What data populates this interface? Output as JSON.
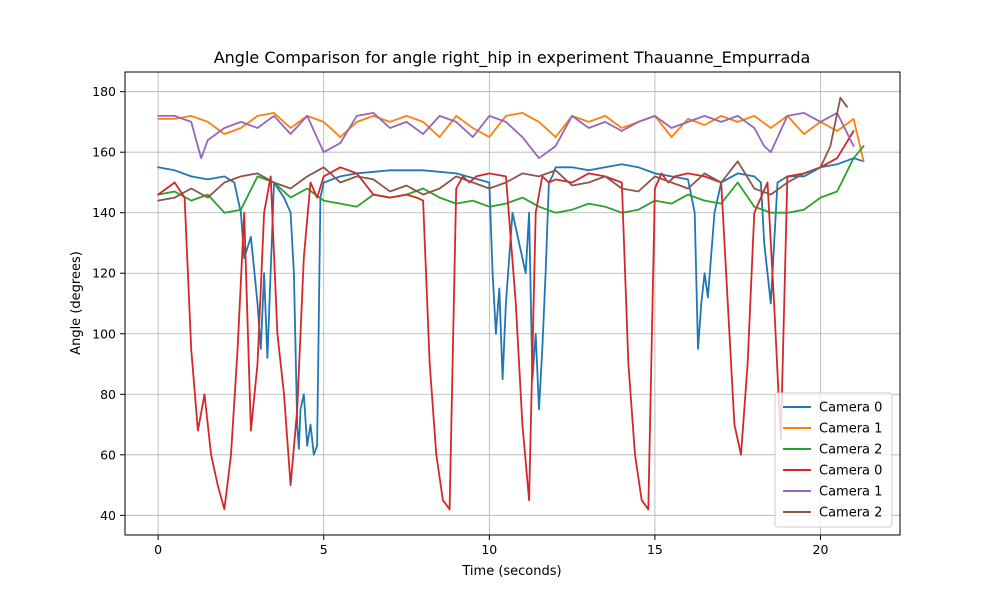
{
  "chart_data": {
    "type": "line",
    "title": "Angle Comparison for angle right_hip in experiment Thauanne_Empurrada",
    "xlabel": "Time (seconds)",
    "ylabel": "Angle (degrees)",
    "xlim": [
      -1.0,
      22.4
    ],
    "ylim": [
      33.5,
      186.5
    ],
    "xticks": [
      0,
      5,
      10,
      15,
      20
    ],
    "yticks": [
      40,
      60,
      80,
      100,
      120,
      140,
      160,
      180
    ],
    "grid": true,
    "legend_position": "lower-right",
    "series": [
      {
        "name": "Camera 0",
        "color": "#1f77b4",
        "x": [
          0,
          0.5,
          1,
          1.5,
          2,
          2.3,
          2.5,
          2.6,
          2.8,
          3,
          3.1,
          3.2,
          3.3,
          3.5,
          3.8,
          4,
          4.1,
          4.2,
          4.25,
          4.3,
          4.4,
          4.5,
          4.6,
          4.7,
          4.8,
          4.9,
          5,
          5.5,
          6,
          7,
          8,
          9,
          10,
          10.1,
          10.2,
          10.3,
          10.4,
          10.5,
          10.7,
          10.9,
          11,
          11.1,
          11.2,
          11.3,
          11.4,
          11.5,
          11.6,
          11.7,
          11.8,
          11.9,
          12,
          12.5,
          13,
          14,
          14.5,
          15,
          15.5,
          16,
          16.2,
          16.3,
          16.4,
          16.5,
          16.6,
          16.8,
          17,
          17.5,
          18,
          18.2,
          18.3,
          18.4,
          18.5,
          18.7,
          19,
          19.5,
          20,
          20.5,
          21,
          21.3
        ],
        "values": [
          155,
          154,
          152,
          151,
          152,
          150,
          140,
          125,
          132,
          110,
          95,
          120,
          92,
          150,
          145,
          140,
          120,
          70,
          62,
          75,
          80,
          63,
          70,
          60,
          63,
          145,
          150,
          152,
          153,
          154,
          154,
          153,
          150,
          120,
          100,
          115,
          85,
          110,
          140,
          130,
          125,
          120,
          140,
          85,
          100,
          75,
          95,
          120,
          150,
          152,
          155,
          155,
          154,
          156,
          155,
          153,
          152,
          151,
          140,
          95,
          110,
          120,
          112,
          140,
          150,
          153,
          152,
          150,
          130,
          120,
          110,
          150,
          152,
          152,
          155,
          156,
          158,
          157
        ]
      },
      {
        "name": "Camera 1",
        "color": "#ff7f0e",
        "x": [
          0,
          0.5,
          1,
          1.5,
          2,
          2.5,
          3,
          3.5,
          4,
          4.5,
          5,
          5.5,
          6,
          6.5,
          7,
          7.5,
          8,
          8.5,
          9,
          9.5,
          10,
          10.5,
          11,
          11.5,
          12,
          12.5,
          13,
          13.5,
          14,
          14.5,
          15,
          15.5,
          16,
          16.5,
          17,
          17.5,
          18,
          18.5,
          19,
          19.5,
          20,
          20.5,
          21,
          21.3
        ],
        "values": [
          171,
          171,
          172,
          170,
          166,
          168,
          172,
          173,
          168,
          172,
          170,
          165,
          170,
          172,
          170,
          172,
          170,
          165,
          172,
          168,
          165,
          172,
          173,
          170,
          165,
          172,
          170,
          172,
          168,
          170,
          172,
          165,
          171,
          169,
          172,
          170,
          172,
          168,
          172,
          166,
          170,
          167,
          171,
          157
        ]
      },
      {
        "name": "Camera 2",
        "color": "#2ca02c",
        "x": [
          0,
          0.5,
          1,
          1.5,
          2,
          2.5,
          3,
          3.5,
          4,
          4.5,
          5,
          5.5,
          6,
          6.5,
          7,
          7.5,
          8,
          8.5,
          9,
          9.5,
          10,
          10.5,
          11,
          11.5,
          12,
          12.5,
          13,
          13.5,
          14,
          14.5,
          15,
          15.5,
          16,
          16.5,
          17,
          17.5,
          18,
          18.5,
          19,
          19.5,
          20,
          20.5,
          21,
          21.3
        ],
        "values": [
          146,
          147,
          144,
          146,
          140,
          141,
          152,
          150,
          145,
          148,
          144,
          143,
          142,
          146,
          145,
          146,
          148,
          145,
          143,
          144,
          142,
          143,
          145,
          142,
          140,
          141,
          143,
          142,
          140,
          141,
          144,
          143,
          146,
          144,
          143,
          150,
          142,
          140,
          140,
          141,
          145,
          147,
          158,
          162
        ]
      },
      {
        "name": "Camera 0",
        "color": "#d62728",
        "x": [
          0,
          0.5,
          0.8,
          1,
          1.2,
          1.4,
          1.6,
          1.8,
          2,
          2.2,
          2.4,
          2.6,
          2.8,
          3,
          3.2,
          3.4,
          3.6,
          3.8,
          4,
          4.2,
          4.4,
          4.6,
          4.8,
          5,
          5.5,
          6,
          6.5,
          7,
          7.5,
          7.8,
          8,
          8.2,
          8.4,
          8.6,
          8.8,
          9,
          9.2,
          9.4,
          9.6,
          10,
          10.5,
          10.8,
          11,
          11.2,
          11.4,
          11.6,
          11.8,
          12,
          12.5,
          13,
          13.5,
          14,
          14.2,
          14.4,
          14.6,
          14.8,
          15,
          15.2,
          15.4,
          15.6,
          16,
          16.5,
          17,
          17.2,
          17.4,
          17.6,
          17.8,
          18,
          18.2,
          18.4,
          18.6,
          18.8,
          19,
          19.5,
          20,
          20.5,
          21
        ],
        "values": [
          146,
          150,
          145,
          95,
          68,
          80,
          60,
          50,
          42,
          60,
          95,
          140,
          68,
          90,
          140,
          152,
          100,
          80,
          50,
          75,
          125,
          150,
          145,
          152,
          155,
          153,
          146,
          145,
          146,
          145,
          144,
          90,
          60,
          45,
          42,
          148,
          152,
          150,
          152,
          153,
          152,
          110,
          70,
          45,
          140,
          152,
          150,
          151,
          150,
          153,
          152,
          150,
          90,
          60,
          45,
          42,
          148,
          153,
          150,
          152,
          153,
          152,
          150,
          110,
          70,
          60,
          90,
          140,
          145,
          150,
          110,
          65,
          152,
          153,
          155,
          158,
          167
        ]
      },
      {
        "name": "Camera 1",
        "color": "#9467bd",
        "x": [
          0,
          0.5,
          1,
          1.3,
          1.5,
          2,
          2.5,
          3,
          3.5,
          4,
          4.5,
          5,
          5.5,
          6,
          6.5,
          7,
          7.5,
          8,
          8.5,
          9,
          9.5,
          10,
          10.5,
          11,
          11.5,
          12,
          12.5,
          13,
          13.5,
          14,
          14.5,
          15,
          15.5,
          16,
          16.5,
          17,
          17.5,
          18,
          18.3,
          18.5,
          19,
          19.5,
          20,
          20.5,
          21
        ],
        "values": [
          172,
          172,
          170,
          158,
          164,
          168,
          170,
          168,
          172,
          166,
          172,
          160,
          163,
          172,
          173,
          168,
          170,
          166,
          172,
          170,
          165,
          172,
          170,
          165,
          158,
          162,
          172,
          168,
          170,
          167,
          170,
          172,
          168,
          170,
          172,
          170,
          172,
          168,
          162,
          160,
          172,
          173,
          170,
          173,
          162
        ]
      },
      {
        "name": "Camera 2",
        "color": "#8c564b",
        "x": [
          0,
          0.5,
          1,
          1.5,
          2,
          2.5,
          3,
          3.5,
          4,
          4.5,
          5,
          5.5,
          6,
          6.5,
          7,
          7.5,
          8,
          8.5,
          9,
          9.5,
          10,
          10.5,
          11,
          11.5,
          12,
          12.5,
          13,
          13.5,
          14,
          14.5,
          15,
          15.5,
          16,
          16.5,
          17,
          17.5,
          18,
          18.5,
          19,
          19.5,
          20,
          20.3,
          20.6,
          20.8
        ],
        "values": [
          144,
          145,
          148,
          145,
          150,
          152,
          153,
          150,
          148,
          152,
          155,
          150,
          152,
          151,
          147,
          149,
          146,
          148,
          152,
          150,
          148,
          150,
          153,
          152,
          154,
          149,
          150,
          152,
          148,
          147,
          152,
          150,
          148,
          153,
          150,
          157,
          148,
          146,
          150,
          153,
          155,
          162,
          178,
          175
        ]
      }
    ]
  }
}
